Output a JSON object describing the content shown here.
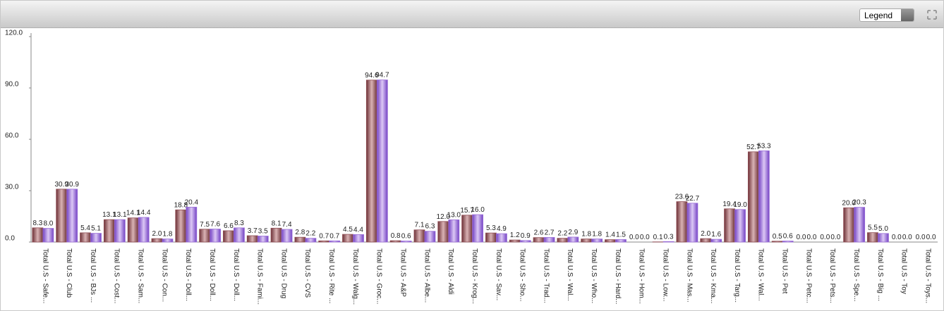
{
  "legend_button": "Legend",
  "chart_data": {
    "type": "bar",
    "categories": [
      "Total U.S - Safe...",
      "Total U.S - Club",
      "Total U.S - BJs ...",
      "Total U.S - Cost...",
      "Total U.S - Sam...",
      "Total U.S - Con...",
      "Total U.S - Doll...",
      "Total U.S - Doll...",
      "Total U.S - Doll...",
      "Total U.S - Fami...",
      "Total U.S - Drug",
      "Total U.S - CVS",
      "Total U.S - Rite ...",
      "Total U.S - Walg...",
      "Total U.S - Groc...",
      "Total U.S - A&P",
      "Total U.S - Albe...",
      "Total U.S - Aldi",
      "Total U.S - Krog...",
      "Total U.S - Sav...",
      "Total U.S - Sho...",
      "Total U.S - Trad...",
      "Total U.S - Wal...",
      "Total U.S - Who...",
      "Total U.S - Hard...",
      "Total U.S - Hom...",
      "Total U.S - Low...",
      "Total U.S - Mas...",
      "Total U.S - Kma...",
      "Total U.S - Targ...",
      "Total U.S - Wal...",
      "Total U.S - Pet",
      "Total U.S - Petc...",
      "Total U.S - Pets...",
      "Total U.S - Spe...",
      "Total U.S - Big ...",
      "Total U.S - Toy",
      "Total U.S - Toys..."
    ],
    "series": [
      {
        "color": "#8e4b52",
        "values": [
          8.3,
          30.9,
          5.4,
          13.1,
          14.1,
          2,
          18.8,
          7.5,
          6.6,
          3.7,
          8.1,
          2.8,
          0.7,
          4.5,
          94.6,
          0.8,
          7.1,
          12,
          15.7,
          5.3,
          1.2,
          2.6,
          2.2,
          1.8,
          1.4,
          0,
          0.1,
          23.6,
          2,
          19.4,
          52.7,
          0.5,
          0,
          0,
          20,
          5.5,
          0,
          0
        ],
        "value_labels": [
          "8.3",
          "30.9",
          "5.4",
          "13.1",
          "14.1",
          "2.0",
          "18.8",
          "7.5",
          "6.6",
          "3.7",
          "8.1",
          "2.8",
          "0.7",
          "4.5",
          "94.6",
          "0.8",
          "7.1",
          "12.0",
          "15.7",
          "5.3",
          "1.2",
          "2.6",
          "2.2",
          "1.8",
          "1.4",
          "0.0",
          "0.1",
          "23.6",
          "2.0",
          "19.4",
          "52.7",
          "0.5",
          "0.0",
          "0.0",
          "20.0",
          "5.5",
          "0.0",
          "0.0"
        ]
      },
      {
        "color": "#9b6fd8",
        "values": [
          8,
          30.9,
          5.1,
          13.1,
          14.4,
          1.8,
          20.4,
          7.6,
          8.3,
          3.5,
          7.4,
          2.2,
          0.7,
          4.4,
          94.7,
          0.6,
          6.3,
          13,
          16,
          4.9,
          0.9,
          2.7,
          2.9,
          1.8,
          1.5,
          0,
          0.3,
          22.7,
          1.6,
          19,
          53.3,
          0.6,
          0,
          0,
          20.3,
          5,
          0,
          0
        ],
        "value_labels": [
          "8.0",
          "30.9",
          "5.1",
          "13.1",
          "14.4",
          "1.8",
          "20.4",
          "7.6",
          "8.3",
          "3.5",
          "7.4",
          "2.2",
          "0.7",
          "4.4",
          "94.7",
          "0.6",
          "6.3",
          "13.0",
          "16.0",
          "4.9",
          "0.9",
          "2.7",
          "2.9",
          "1.8",
          "1.5",
          "0.0",
          "0.3",
          "22.7",
          "1.6",
          "19.0",
          "53.3",
          "0.6",
          "0.0",
          "0.0",
          "20.3",
          "5.0",
          "0.0",
          "0.0"
        ]
      }
    ],
    "ylim": [
      0,
      120
    ],
    "yticks": [
      {
        "value": 0,
        "label": "0.0"
      },
      {
        "value": 30,
        "label": "30.0"
      },
      {
        "value": 60,
        "label": "60.0"
      },
      {
        "value": 90,
        "label": "90.0"
      },
      {
        "value": 120,
        "label": "120.0"
      }
    ],
    "grid": false
  }
}
